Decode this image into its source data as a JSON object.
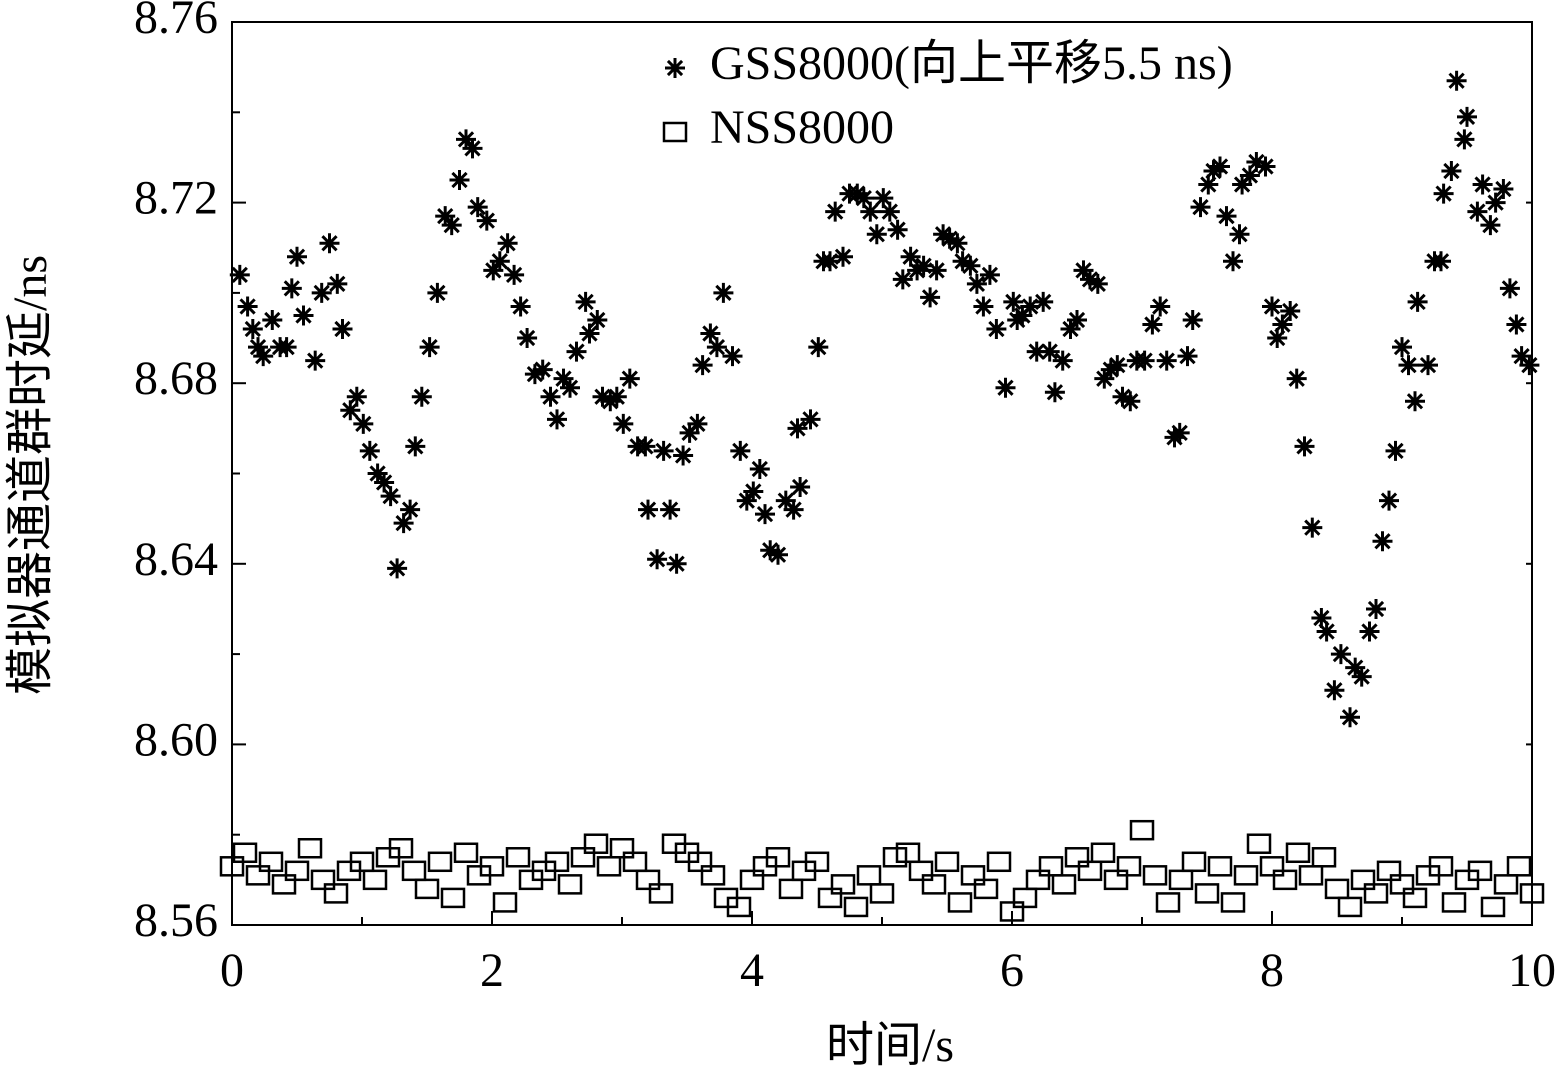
{
  "chart_data": {
    "type": "scatter",
    "xlabel": "时间/s",
    "ylabel": "模拟器通道群时延/ns",
    "xlim": [
      0,
      10
    ],
    "xticks": [
      0,
      2,
      4,
      6,
      8,
      10
    ],
    "xminorticks": [
      1,
      3,
      5,
      7,
      9
    ],
    "ylim": [
      8.56,
      8.76
    ],
    "yticks": [
      8.56,
      {
        "value": 8.6,
        "label": "8.60"
      },
      8.64,
      8.68,
      8.72,
      8.76
    ],
    "yminorticks": [
      8.58,
      8.62,
      8.66,
      {
        "value": 8.7,
        "label": "8.70"
      },
      8.74
    ],
    "legend": "upper center",
    "series": [
      {
        "name": "GSS8000(向上平移5.5 ns)",
        "marker": "star",
        "color": "#000000",
        "x": [
          0.06,
          0.12,
          0.16,
          0.2,
          0.24,
          0.31,
          0.37,
          0.42,
          0.46,
          0.5,
          0.55,
          0.64,
          0.69,
          0.75,
          0.81,
          0.85,
          0.91,
          0.96,
          1.01,
          1.06,
          1.12,
          1.17,
          1.22,
          1.27,
          1.32,
          1.37,
          1.41,
          1.46,
          1.52,
          1.58,
          1.64,
          1.69,
          1.75,
          1.8,
          1.85,
          1.89,
          1.96,
          2.01,
          2.06,
          2.12,
          2.17,
          2.22,
          2.27,
          2.33,
          2.39,
          2.45,
          2.5,
          2.55,
          2.6,
          2.65,
          2.72,
          2.75,
          2.81,
          2.85,
          2.91,
          2.96,
          3.01,
          3.06,
          3.12,
          3.18,
          3.2,
          3.27,
          3.32,
          3.37,
          3.42,
          3.47,
          3.52,
          3.58,
          3.62,
          3.68,
          3.73,
          3.78,
          3.85,
          3.91,
          3.96,
          4.01,
          4.06,
          4.1,
          4.14,
          4.2,
          4.26,
          4.32,
          4.37,
          4.35,
          4.45,
          4.51,
          4.55,
          4.6,
          4.64,
          4.7,
          4.75,
          4.81,
          4.86,
          4.91,
          4.96,
          5.01,
          5.06,
          5.12,
          5.16,
          5.22,
          5.27,
          5.32,
          5.37,
          5.42,
          5.47,
          5.52,
          5.58,
          5.62,
          5.68,
          5.73,
          5.78,
          5.83,
          5.88,
          5.95,
          6.01,
          6.04,
          6.08,
          6.14,
          6.19,
          6.24,
          6.29,
          6.33,
          6.39,
          6.45,
          6.5,
          6.55,
          6.6,
          6.66,
          6.71,
          6.76,
          6.81,
          6.85,
          6.91,
          6.96,
          7.02,
          7.08,
          7.14,
          7.19,
          7.25,
          7.29,
          7.35,
          7.39,
          7.45,
          7.51,
          7.55,
          7.6,
          7.65,
          7.7,
          7.75,
          7.77,
          7.83,
          7.88,
          7.95,
          8.0,
          8.04,
          8.08,
          8.14,
          8.19,
          8.25,
          8.31,
          8.38,
          8.42,
          8.48,
          8.53,
          8.6,
          8.64,
          8.69,
          8.75,
          8.8,
          8.85,
          8.9,
          8.95,
          9.0,
          9.05,
          9.1,
          9.12,
          9.2,
          9.25,
          9.3,
          9.32,
          9.38,
          9.42,
          9.48,
          9.5,
          9.58,
          9.62,
          9.68,
          9.72,
          9.78,
          9.83,
          9.88,
          9.92,
          9.98
        ],
        "values": [
          8.704,
          8.697,
          8.692,
          8.688,
          8.686,
          8.694,
          8.688,
          8.688,
          8.701,
          8.708,
          8.695,
          8.685,
          8.7,
          8.711,
          8.702,
          8.692,
          8.674,
          8.677,
          8.671,
          8.665,
          8.66,
          8.658,
          8.655,
          8.639,
          8.649,
          8.652,
          8.666,
          8.677,
          8.688,
          8.7,
          8.717,
          8.715,
          8.725,
          8.734,
          8.732,
          8.719,
          8.716,
          8.705,
          8.707,
          8.711,
          8.704,
          8.697,
          8.69,
          8.682,
          8.683,
          8.677,
          8.672,
          8.681,
          8.679,
          8.687,
          8.698,
          8.691,
          8.694,
          8.677,
          8.676,
          8.677,
          8.671,
          8.681,
          8.666,
          8.666,
          8.652,
          8.641,
          8.665,
          8.652,
          8.64,
          8.664,
          8.669,
          8.671,
          8.684,
          8.691,
          8.688,
          8.7,
          8.686,
          8.665,
          8.654,
          8.656,
          8.661,
          8.651,
          8.643,
          8.642,
          8.654,
          8.652,
          8.657,
          8.67,
          8.672,
          8.688,
          8.707,
          8.707,
          8.718,
          8.708,
          8.722,
          8.722,
          8.721,
          8.718,
          8.713,
          8.721,
          8.718,
          8.714,
          8.703,
          8.708,
          8.705,
          8.706,
          8.699,
          8.705,
          8.713,
          8.712,
          8.711,
          8.707,
          8.706,
          8.702,
          8.697,
          8.704,
          8.692,
          8.679,
          8.698,
          8.694,
          8.695,
          8.697,
          8.687,
          8.698,
          8.687,
          8.678,
          8.685,
          8.692,
          8.694,
          8.705,
          8.703,
          8.702,
          8.681,
          8.683,
          8.684,
          8.677,
          8.676,
          8.685,
          8.685,
          8.693,
          8.697,
          8.685,
          8.668,
          8.669,
          8.686,
          8.694,
          8.719,
          8.724,
          8.727,
          8.728,
          8.717,
          8.707,
          8.713,
          8.724,
          8.726,
          8.729,
          8.728,
          8.697,
          8.69,
          8.693,
          8.696,
          8.681,
          8.666,
          8.648,
          8.628,
          8.625,
          8.612,
          8.62,
          8.606,
          8.617,
          8.615,
          8.625,
          8.63,
          8.645,
          8.654,
          8.665,
          8.688,
          8.684,
          8.676,
          8.698,
          8.684,
          8.707,
          8.707,
          8.722,
          8.727,
          8.747,
          8.734,
          8.739,
          8.718,
          8.724,
          8.715,
          8.72,
          8.723,
          8.701,
          8.693,
          8.686,
          8.684
        ]
      },
      {
        "name": "NSS8000",
        "marker": "square",
        "color": "#000000",
        "x": [
          0,
          0.1,
          0.2,
          0.3,
          0.4,
          0.5,
          0.6,
          0.7,
          0.8,
          0.9,
          1,
          1.1,
          1.2,
          1.3,
          1.4,
          1.5,
          1.6,
          1.7,
          1.8,
          1.9,
          2,
          2.1,
          2.2,
          2.3,
          2.4,
          2.5,
          2.6,
          2.7,
          2.8,
          2.9,
          3,
          3.1,
          3.2,
          3.3,
          3.4,
          3.5,
          3.6,
          3.7,
          3.8,
          3.9,
          4,
          4.1,
          4.2,
          4.3,
          4.4,
          4.5,
          4.6,
          4.7,
          4.8,
          4.9,
          5,
          5.1,
          5.2,
          5.3,
          5.4,
          5.5,
          5.6,
          5.7,
          5.8,
          5.9,
          6,
          6.1,
          6.2,
          6.3,
          6.4,
          6.5,
          6.6,
          6.7,
          6.8,
          6.9,
          7,
          7.1,
          7.2,
          7.3,
          7.4,
          7.5,
          7.6,
          7.7,
          7.8,
          7.9,
          8,
          8.1,
          8.2,
          8.3,
          8.4,
          8.5,
          8.6,
          8.7,
          8.8,
          8.9,
          9,
          9.1,
          9.2,
          9.3,
          9.4,
          9.5,
          9.6,
          9.7,
          9.8,
          9.9,
          10
        ],
        "values": [
          8.573,
          8.576,
          8.571,
          8.574,
          8.569,
          8.572,
          8.577,
          8.57,
          8.567,
          8.572,
          8.574,
          8.57,
          8.575,
          8.577,
          8.572,
          8.568,
          8.574,
          8.566,
          8.576,
          8.571,
          8.573,
          8.565,
          8.575,
          8.57,
          8.572,
          8.574,
          8.569,
          8.575,
          8.578,
          8.573,
          8.577,
          8.574,
          8.57,
          8.567,
          8.578,
          8.576,
          8.574,
          8.571,
          8.566,
          8.564,
          8.57,
          8.573,
          8.575,
          8.568,
          8.572,
          8.574,
          8.566,
          8.569,
          8.564,
          8.571,
          8.567,
          8.575,
          8.576,
          8.572,
          8.569,
          8.574,
          8.565,
          8.571,
          8.568,
          8.574,
          8.563,
          8.566,
          8.57,
          8.573,
          8.569,
          8.575,
          8.572,
          8.576,
          8.57,
          8.573,
          8.581,
          8.571,
          8.565,
          8.57,
          8.574,
          8.567,
          8.573,
          8.565,
          8.571,
          8.578,
          8.573,
          8.57,
          8.576,
          8.571,
          8.575,
          8.568,
          8.564,
          8.57,
          8.567,
          8.572,
          8.569,
          8.566,
          8.571,
          8.573,
          8.565,
          8.57,
          8.572,
          8.564,
          8.569,
          8.573,
          8.567
        ]
      }
    ]
  }
}
